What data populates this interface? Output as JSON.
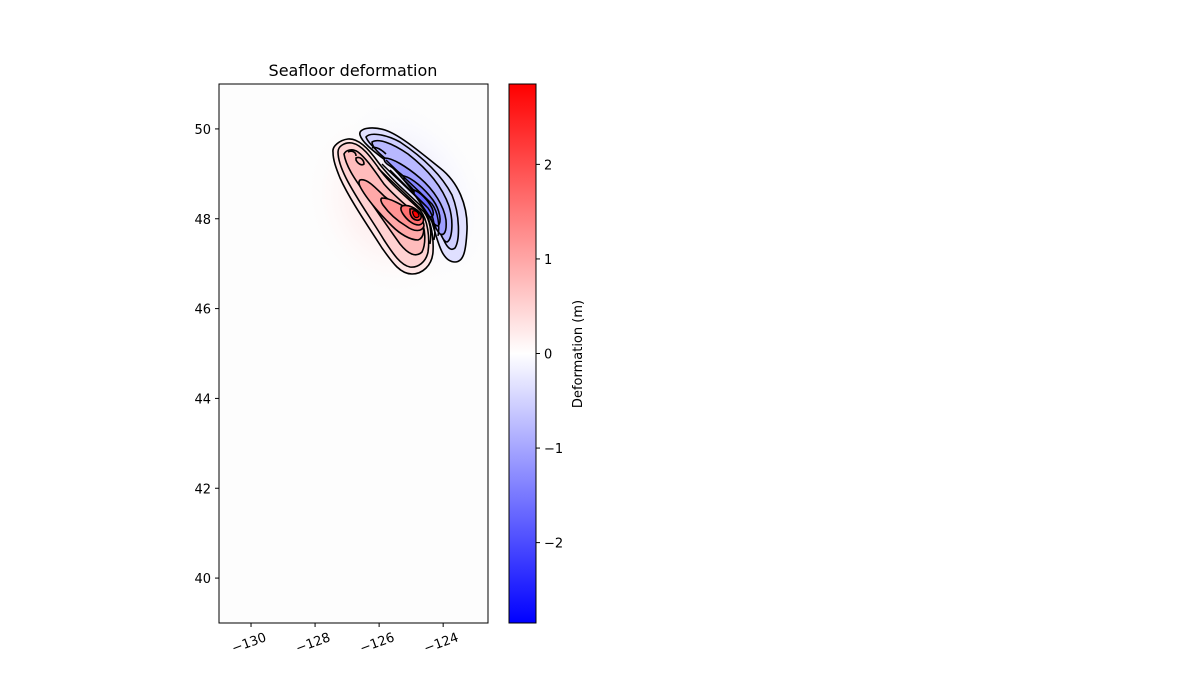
{
  "chart_data": {
    "type": "heatmap",
    "title": "Seafloor deformation",
    "xlabel": "",
    "ylabel": "",
    "xlim": [
      -131,
      -122.6
    ],
    "ylim": [
      39,
      51
    ],
    "x_ticks": [
      -130,
      -128,
      -126,
      -124
    ],
    "x_tick_labels": [
      "−130",
      "−128",
      "−126",
      "−124"
    ],
    "y_ticks": [
      40,
      42,
      44,
      46,
      48,
      50
    ],
    "y_tick_labels": [
      "40",
      "42",
      "44",
      "46",
      "48",
      "50"
    ],
    "colormap": "bwr",
    "colorbar": {
      "label": "Deformation (m)",
      "range": [
        -2.85,
        2.85
      ],
      "ticks": [
        -2,
        -1,
        0,
        1,
        2
      ],
      "tick_labels": [
        "−2",
        "−1",
        "0",
        "1",
        "2"
      ],
      "colors": [
        "#0000ff",
        "#ffffff",
        "#ff0000"
      ]
    },
    "grid": false,
    "features": [
      {
        "name": "uplift lobe",
        "sign": "positive",
        "peak_value": 2.85,
        "peak_lon": -124.8,
        "peak_lat": 48.1,
        "extent_lon": [
          -127.1,
          -124.3
        ],
        "extent_lat": [
          46.75,
          49.7
        ]
      },
      {
        "name": "subsidence lobe",
        "sign": "negative",
        "peak_value": -1.9,
        "peak_lon": -124.3,
        "peak_lat": 48.3,
        "extent_lon": [
          -126.6,
          -123.5
        ],
        "extent_lat": [
          47.1,
          50.0
        ]
      }
    ],
    "contour_color": "#000000"
  }
}
